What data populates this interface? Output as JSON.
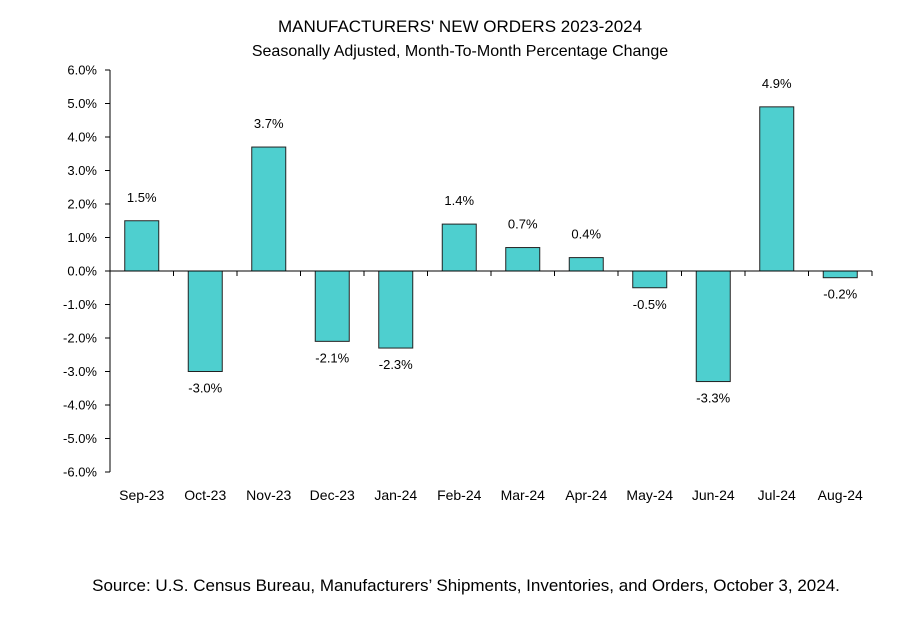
{
  "chart_data": {
    "type": "bar",
    "title": "MANUFACTURERS' NEW ORDERS 2023-2024",
    "subtitle": "Seasonally Adjusted,  Month-To-Month Percentage Change",
    "categories": [
      "Sep-23",
      "Oct-23",
      "Nov-23",
      "Dec-23",
      "Jan-24",
      "Feb-24",
      "Mar-24",
      "Apr-24",
      "May-24",
      "Jun-24",
      "Jul-24",
      "Aug-24"
    ],
    "values": [
      1.5,
      -3.0,
      3.7,
      -2.1,
      -2.3,
      1.4,
      0.7,
      0.4,
      -0.5,
      -3.3,
      4.9,
      -0.2
    ],
    "data_labels": [
      "1.5%",
      "-3.0%",
      "3.7%",
      "-2.1%",
      "-2.3%",
      "1.4%",
      "0.7%",
      "0.4%",
      "-0.5%",
      "-3.3%",
      "4.9%",
      "-0.2%"
    ],
    "yticks": [
      "6.0%",
      "5.0%",
      "4.0%",
      "3.0%",
      "2.0%",
      "1.0%",
      "0.0%",
      "-1.0%",
      "-2.0%",
      "-3.0%",
      "-4.0%",
      "-5.0%",
      "-6.0%"
    ],
    "ylim": [
      -6,
      6
    ],
    "xlabel": "",
    "ylabel": "",
    "grid": false,
    "colors": {
      "bar_fill": "#4ecfcf",
      "bar_stroke": "#222222",
      "axis": "#000000"
    }
  },
  "source": "Source: U.S. Census Bureau, Manufacturers’ Shipments, Inventories, and Orders, October 3, 2024."
}
